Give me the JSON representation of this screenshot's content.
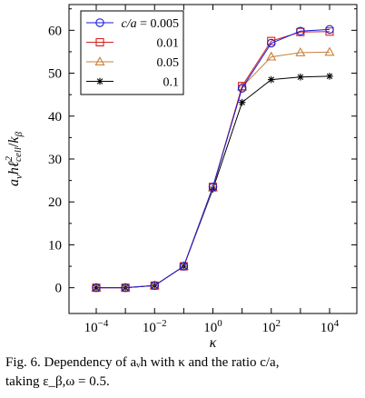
{
  "chart_data": {
    "type": "line",
    "x_scale": "log10",
    "x": [
      0.0001,
      0.001,
      0.01,
      0.1,
      1,
      10,
      100,
      1000,
      10000
    ],
    "xlabel": "κ",
    "ylabel": "a_v h ℓ²_cell / k_β",
    "xlim": [
      0.0001,
      10000
    ],
    "ylim": [
      -6,
      66
    ],
    "xticks": [
      0.0001,
      0.01,
      1,
      100,
      10000
    ],
    "xtick_labels": [
      {
        "base": "10",
        "exp": "−4"
      },
      {
        "base": "10",
        "exp": "−2"
      },
      {
        "base": "10",
        "exp": "0"
      },
      {
        "base": "10",
        "exp": "2"
      },
      {
        "base": "10",
        "exp": "4"
      }
    ],
    "yticks": [
      0,
      10,
      20,
      30,
      40,
      50,
      60
    ],
    "legend_title": "c/a",
    "legend_position": "top-left",
    "grid": false,
    "series": [
      {
        "name": "0.005",
        "legend_label": "c/a = 0.005",
        "color": "#1a1ad6",
        "marker": "circle",
        "values": [
          0,
          0,
          0.5,
          5,
          23.5,
          46.5,
          57,
          59.8,
          60.2
        ]
      },
      {
        "name": "0.01",
        "legend_label": "0.01",
        "color": "#d42020",
        "marker": "square",
        "values": [
          0,
          0,
          0.5,
          5,
          23.5,
          47,
          57.5,
          59.6,
          59.7
        ]
      },
      {
        "name": "0.05",
        "legend_label": "0.05",
        "color": "#c8803a",
        "marker": "triangle",
        "values": [
          0,
          0,
          0.5,
          5,
          23.3,
          46.8,
          53.8,
          54.8,
          54.9
        ]
      },
      {
        "name": "0.1",
        "legend_label": "0.1",
        "color": "#000000",
        "marker": "star",
        "values": [
          0,
          0,
          0.5,
          5,
          23.0,
          43.2,
          48.5,
          49.1,
          49.3
        ]
      }
    ]
  },
  "caption": {
    "line1": "Fig. 6. Dependency of aᵥh with κ and the ratio c/a,",
    "line2": "taking ε_β,ω = 0.5."
  }
}
